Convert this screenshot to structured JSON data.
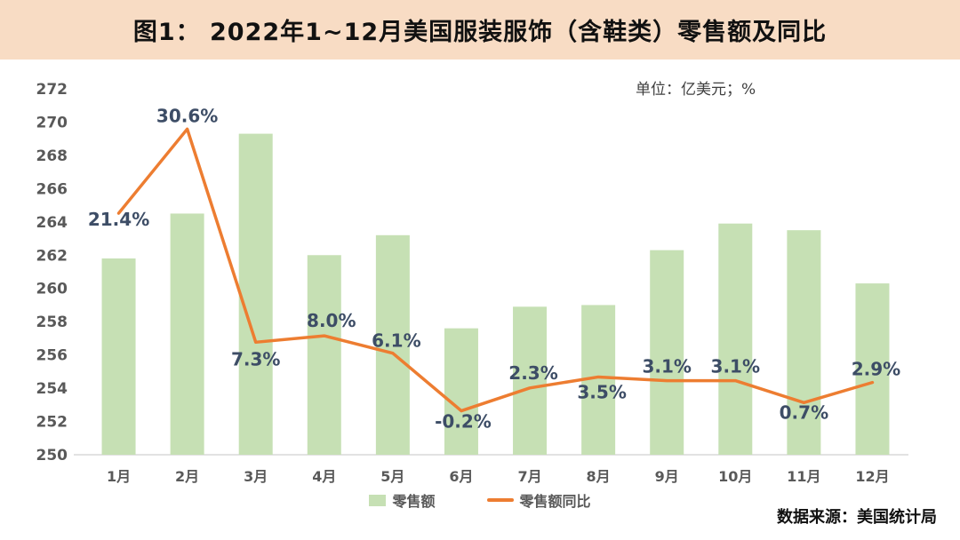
{
  "header": {
    "title": "图1： 2022年1~12月美国服装服饰（含鞋类）零售额及同比"
  },
  "unit_label": "单位：亿美元；%",
  "source_note": "数据来源：美国统计局",
  "colors": {
    "header_bg": "#f8dcc4",
    "bar": "#c6e0b4",
    "line": "#ed7d31",
    "data_label": "#3d4d66",
    "axis_text": "#595959",
    "baseline": "#d9d9d9"
  },
  "legend": {
    "items": [
      {
        "label": "零售额",
        "type": "bar"
      },
      {
        "label": "零售额同比",
        "type": "line"
      }
    ]
  },
  "chart_data": {
    "type": "bar+line",
    "title": "2022年1~12月美国服装服饰（含鞋类）零售额及同比",
    "categories": [
      "1月",
      "2月",
      "3月",
      "4月",
      "5月",
      "6月",
      "7月",
      "8月",
      "9月",
      "10月",
      "11月",
      "12月"
    ],
    "series": [
      {
        "name": "零售额",
        "type": "bar",
        "unit": "亿美元",
        "color": "#c6e0b4",
        "values": [
          261.8,
          264.5,
          269.3,
          262.0,
          263.2,
          257.6,
          258.9,
          259.0,
          262.3,
          263.9,
          263.5,
          260.3
        ]
      },
      {
        "name": "零售额同比",
        "type": "line",
        "unit": "%",
        "color": "#ed7d31",
        "values": [
          21.4,
          30.6,
          7.3,
          8.0,
          6.1,
          -0.2,
          2.3,
          3.5,
          3.1,
          3.1,
          0.7,
          2.9
        ],
        "labels": [
          "21.4%",
          "30.6%",
          "7.3%",
          "8.0%",
          "6.1%",
          "-0.2%",
          "2.3%",
          "3.5%",
          "3.1%",
          "3.1%",
          "0.7%",
          "2.9%"
        ],
        "label_offsets": [
          [
            0,
            14
          ],
          [
            0,
            -8
          ],
          [
            0,
            26
          ],
          [
            8,
            -10
          ],
          [
            4,
            -7
          ],
          [
            2,
            19
          ],
          [
            4,
            -10
          ],
          [
            4,
            24
          ],
          [
            0,
            -9
          ],
          [
            0,
            -9
          ],
          [
            0,
            18
          ],
          [
            4,
            -8
          ]
        ]
      }
    ],
    "y_axis": {
      "min": 250,
      "max": 272,
      "step": 2,
      "tick_labels": [
        "250",
        "252",
        "254",
        "256",
        "258",
        "260",
        "262",
        "264",
        "266",
        "268",
        "270",
        "272"
      ]
    },
    "y2_axis": {
      "min": -5,
      "max": 35,
      "visible": false
    },
    "grid": false,
    "legend_position": "bottom"
  }
}
